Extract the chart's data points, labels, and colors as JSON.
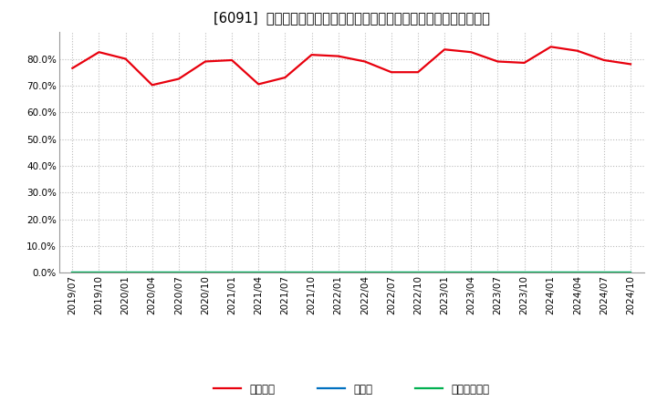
{
  "title": "[6091]  自己資本、のれん、繰延税金資産の総資産に対する比率の推移",
  "x_labels": [
    "2019/07",
    "2019/10",
    "2020/01",
    "2020/04",
    "2020/07",
    "2020/10",
    "2021/01",
    "2021/04",
    "2021/07",
    "2021/10",
    "2022/01",
    "2022/04",
    "2022/07",
    "2022/10",
    "2023/01",
    "2023/04",
    "2023/07",
    "2023/10",
    "2024/01",
    "2024/04",
    "2024/07",
    "2024/10"
  ],
  "equity_ratio": [
    76.5,
    82.5,
    80.0,
    70.2,
    72.5,
    79.0,
    79.5,
    70.5,
    73.0,
    81.5,
    81.0,
    79.0,
    75.0,
    75.0,
    83.5,
    82.5,
    79.0,
    78.5,
    84.5,
    83.0,
    79.5,
    78.0
  ],
  "goodwill_ratio": [
    0.0,
    0.0,
    0.0,
    0.0,
    0.0,
    0.0,
    0.0,
    0.0,
    0.0,
    0.0,
    0.0,
    0.0,
    0.0,
    0.0,
    0.0,
    0.0,
    0.0,
    0.0,
    0.0,
    0.0,
    0.0,
    0.0
  ],
  "deferred_tax_ratio": [
    0.0,
    0.0,
    0.0,
    0.0,
    0.0,
    0.0,
    0.0,
    0.0,
    0.0,
    0.0,
    0.0,
    0.0,
    0.0,
    0.0,
    0.0,
    0.0,
    0.0,
    0.0,
    0.0,
    0.0,
    0.0,
    0.0
  ],
  "equity_color": "#e8000d",
  "goodwill_color": "#0070c0",
  "deferred_tax_color": "#00b050",
  "legend_labels": [
    "自己資本",
    "のれん",
    "繰延税金資産"
  ],
  "ylim": [
    0,
    90
  ],
  "yticks": [
    0,
    10,
    20,
    30,
    40,
    50,
    60,
    70,
    80
  ],
  "bg_color": "#ffffff",
  "plot_bg_color": "#ffffff",
  "grid_color": "#bbbbbb",
  "title_fontsize": 10.5,
  "axis_fontsize": 7.5,
  "legend_fontsize": 8.5,
  "line_width": 1.6
}
